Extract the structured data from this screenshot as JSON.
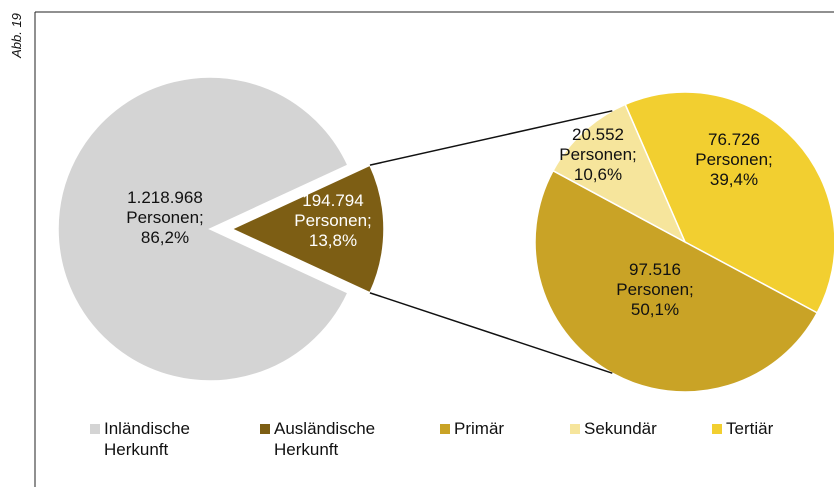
{
  "chart_data": [
    {
      "type": "pie",
      "categories": [
        "Inländische Herkunft",
        "Ausländische Herkunft"
      ],
      "values": [
        86.2,
        13.8
      ],
      "value_labels": [
        "1.218.968\nPersonen;\n86,2%",
        "194.794\nPersonen;\n13,8%"
      ],
      "colors": [
        "#d4d4d4",
        "#7d5e14"
      ],
      "annotation": "Abb. 19"
    },
    {
      "type": "pie",
      "categories": [
        "Primär",
        "Sekundär",
        "Tertiär"
      ],
      "values": [
        50.1,
        10.6,
        39.4
      ],
      "value_labels": [
        "97.516\nPersonen;\n50,1%",
        "20.552\nPersonen;\n10,6%",
        "76.726\nPersonen;\n39,4%"
      ],
      "colors": [
        "#c9a326",
        "#f6e59c",
        "#f2cf30"
      ]
    }
  ]
}
